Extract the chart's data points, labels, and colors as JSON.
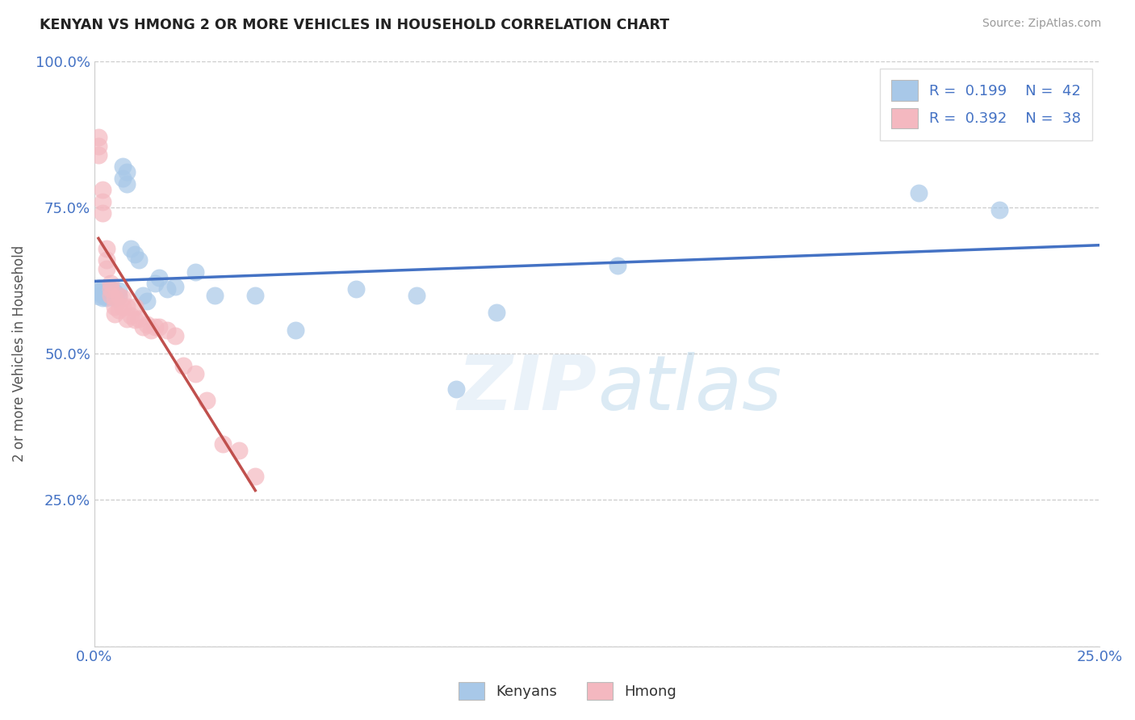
{
  "title": "KENYAN VS HMONG 2 OR MORE VEHICLES IN HOUSEHOLD CORRELATION CHART",
  "source": "Source: ZipAtlas.com",
  "ylabel": "2 or more Vehicles in Household",
  "xlim": [
    0.0,
    0.25
  ],
  "ylim": [
    0.0,
    1.0
  ],
  "legend_label_1": "Kenyans",
  "legend_label_2": "Hmong",
  "watermark_text": "ZIPatlas",
  "blue_scatter_color": "#a8c8e8",
  "pink_scatter_color": "#f4b8c0",
  "blue_line_color": "#4472c4",
  "pink_line_color": "#c0504d",
  "xtick_positions": [
    0.0,
    0.05,
    0.1,
    0.15,
    0.2,
    0.25
  ],
  "xtick_labels": [
    "0.0%",
    "",
    "",
    "",
    "",
    "25.0%"
  ],
  "ytick_positions": [
    0.0,
    0.25,
    0.5,
    0.75,
    1.0
  ],
  "ytick_labels": [
    "",
    "25.0%",
    "50.0%",
    "75.0%",
    "100.0%"
  ],
  "kenyans_x": [
    0.001,
    0.001,
    0.001,
    0.002,
    0.002,
    0.002,
    0.003,
    0.003,
    0.003,
    0.003,
    0.004,
    0.004,
    0.004,
    0.005,
    0.005,
    0.005,
    0.006,
    0.006,
    0.007,
    0.007,
    0.008,
    0.008,
    0.009,
    0.01,
    0.011,
    0.012,
    0.013,
    0.015,
    0.016,
    0.018,
    0.02,
    0.025,
    0.03,
    0.04,
    0.05,
    0.065,
    0.08,
    0.09,
    0.1,
    0.13,
    0.205,
    0.225
  ],
  "kenyans_y": [
    0.605,
    0.598,
    0.612,
    0.6,
    0.595,
    0.61,
    0.6,
    0.598,
    0.605,
    0.595,
    0.605,
    0.598,
    0.61,
    0.6,
    0.595,
    0.605,
    0.598,
    0.608,
    0.8,
    0.82,
    0.79,
    0.81,
    0.68,
    0.67,
    0.66,
    0.6,
    0.59,
    0.62,
    0.63,
    0.61,
    0.615,
    0.64,
    0.6,
    0.6,
    0.54,
    0.61,
    0.6,
    0.44,
    0.57,
    0.65,
    0.775,
    0.745
  ],
  "hmong_x": [
    0.001,
    0.001,
    0.001,
    0.002,
    0.002,
    0.002,
    0.003,
    0.003,
    0.003,
    0.004,
    0.004,
    0.004,
    0.005,
    0.005,
    0.005,
    0.006,
    0.006,
    0.007,
    0.007,
    0.008,
    0.008,
    0.009,
    0.01,
    0.01,
    0.011,
    0.012,
    0.013,
    0.014,
    0.015,
    0.016,
    0.018,
    0.02,
    0.022,
    0.025,
    0.028,
    0.032,
    0.036,
    0.04
  ],
  "hmong_y": [
    0.87,
    0.855,
    0.84,
    0.78,
    0.76,
    0.74,
    0.68,
    0.66,
    0.645,
    0.62,
    0.61,
    0.6,
    0.595,
    0.58,
    0.568,
    0.6,
    0.575,
    0.595,
    0.58,
    0.58,
    0.56,
    0.565,
    0.58,
    0.558,
    0.56,
    0.545,
    0.55,
    0.54,
    0.545,
    0.545,
    0.54,
    0.53,
    0.48,
    0.465,
    0.42,
    0.345,
    0.335,
    0.29
  ]
}
